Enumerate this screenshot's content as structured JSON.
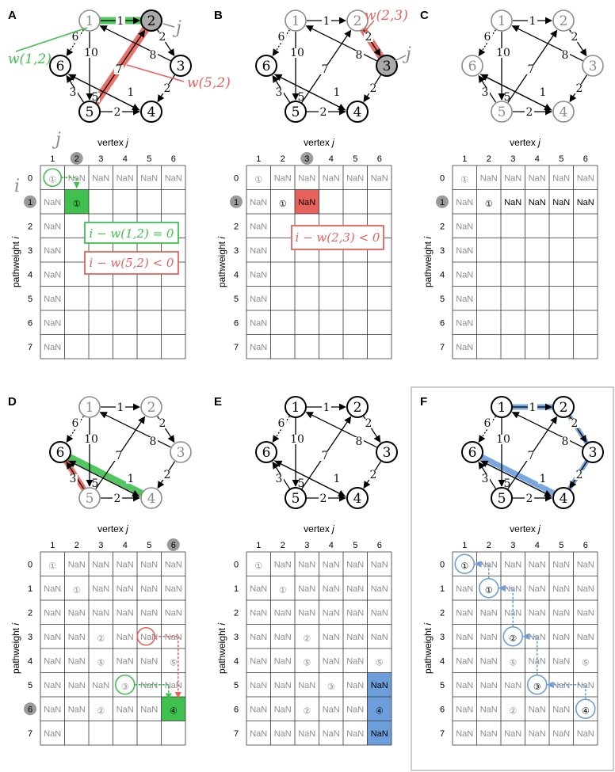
{
  "colors": {
    "green": "#3fc04f",
    "red": "#e8615a",
    "blue": "#6d9edc",
    "gray": "#8c8c8c",
    "dark": "#000000"
  },
  "axes": {
    "xlabel": "vertex",
    "xvar": "j",
    "ylabel": "pathweight",
    "yvar": "i",
    "cols": [
      "1",
      "2",
      "3",
      "4",
      "5",
      "6"
    ],
    "rows": [
      "0",
      "1",
      "2",
      "3",
      "4",
      "5",
      "6",
      "7"
    ]
  },
  "graph": {
    "nodes": [
      "1",
      "2",
      "3",
      "4",
      "5",
      "6"
    ],
    "edges": [
      {
        "from": 1,
        "to": 2,
        "w": "1"
      },
      {
        "from": 2,
        "to": 3,
        "w": "2"
      },
      {
        "from": 3,
        "to": 4,
        "w": "2"
      },
      {
        "from": 5,
        "to": 4,
        "w": "2"
      },
      {
        "from": 4,
        "to": 6,
        "w": "1"
      },
      {
        "from": 6,
        "to": 4,
        "w": "5"
      },
      {
        "from": 5,
        "to": 6,
        "w": "3"
      },
      {
        "from": 1,
        "to": 6,
        "w": "6"
      },
      {
        "from": 1,
        "to": 5,
        "w": "10"
      },
      {
        "from": 3,
        "to": 1,
        "w": "8"
      },
      {
        "from": 5,
        "to": 2,
        "w": "7"
      }
    ]
  },
  "panels": [
    {
      "label": "A",
      "graph_dark": [
        "2",
        "3",
        "4",
        "5",
        "6"
      ],
      "table": [
        [
          "①",
          "NaN",
          "NaN",
          "NaN",
          "NaN",
          "NaN"
        ],
        [
          "NaN",
          "①",
          "",
          "",
          "",
          ""
        ],
        [
          "NaN",
          "",
          "",
          "",
          "",
          ""
        ],
        [
          "NaN",
          "",
          "",
          "",
          "",
          ""
        ],
        [
          "NaN",
          "",
          "",
          "",
          "",
          ""
        ],
        [
          "NaN",
          "",
          "",
          "",
          "",
          ""
        ],
        [
          "NaN",
          "",
          "",
          "",
          "",
          ""
        ],
        [
          "NaN",
          "",
          "",
          "",
          "",
          ""
        ]
      ],
      "mark_col": "j",
      "mark_row": "i",
      "anno_green": "w(1,2)",
      "anno_red": "w(5,2)",
      "anno_j": "j",
      "box_green": "i − w(1,2) = 0",
      "box_red": "i − w(5,2) < 0"
    },
    {
      "label": "B",
      "graph_dark": [
        "3",
        "4",
        "5",
        "6"
      ],
      "table": [
        [
          "①",
          "NaN",
          "NaN",
          "NaN",
          "NaN",
          "NaN"
        ],
        [
          "NaN",
          "①",
          "NaN",
          "",
          "",
          ""
        ],
        [
          "NaN",
          "",
          "",
          "",
          "",
          ""
        ],
        [
          "NaN",
          "",
          "",
          "",
          "",
          ""
        ],
        [
          "NaN",
          "",
          "",
          "",
          "",
          ""
        ],
        [
          "NaN",
          "",
          "",
          "",
          "",
          ""
        ],
        [
          "NaN",
          "",
          "",
          "",
          "",
          ""
        ],
        [
          "NaN",
          "",
          "",
          "",
          "",
          ""
        ]
      ],
      "mark_col": "3",
      "mark_row": "1",
      "anno_red": "w(2,3)",
      "anno_j": "j",
      "box_red": "i − w(2,3) < 0"
    },
    {
      "label": "C",
      "graph_dark": [],
      "table": [
        [
          "①",
          "NaN",
          "NaN",
          "NaN",
          "NaN",
          "NaN"
        ],
        [
          "NaN",
          "①",
          "NaN",
          "NaN",
          "NaN",
          "NaN"
        ],
        [
          "NaN",
          "",
          "",
          "",
          "",
          ""
        ],
        [
          "NaN",
          "",
          "",
          "",
          "",
          ""
        ],
        [
          "NaN",
          "",
          "",
          "",
          "",
          ""
        ],
        [
          "NaN",
          "",
          "",
          "",
          "",
          ""
        ],
        [
          "NaN",
          "",
          "",
          "",
          "",
          ""
        ],
        [
          "NaN",
          "",
          "",
          "",
          "",
          ""
        ]
      ],
      "mark_row": "1"
    },
    {
      "label": "D",
      "graph_dark": [
        "6"
      ],
      "table": [
        [
          "①",
          "NaN",
          "NaN",
          "NaN",
          "NaN",
          "NaN"
        ],
        [
          "NaN",
          "①",
          "NaN",
          "NaN",
          "NaN",
          "NaN"
        ],
        [
          "NaN",
          "NaN",
          "NaN",
          "NaN",
          "NaN",
          "NaN"
        ],
        [
          "NaN",
          "NaN",
          "②",
          "NaN",
          "NaN",
          "NaN"
        ],
        [
          "NaN",
          "NaN",
          "⑤",
          "NaN",
          "NaN",
          "⑤"
        ],
        [
          "NaN",
          "NaN",
          "NaN",
          "③",
          "NaN",
          "NaN"
        ],
        [
          "NaN",
          "NaN",
          "②",
          "NaN",
          "NaN",
          "④"
        ],
        [
          "NaN",
          "",
          "",
          "",
          "",
          ""
        ]
      ],
      "mark_col": "6",
      "mark_row": "6"
    },
    {
      "label": "E",
      "graph_dark": [
        "1",
        "2",
        "3",
        "4",
        "5",
        "6"
      ],
      "table": [
        [
          "①",
          "NaN",
          "NaN",
          "NaN",
          "NaN",
          "NaN"
        ],
        [
          "NaN",
          "①",
          "NaN",
          "NaN",
          "NaN",
          "NaN"
        ],
        [
          "NaN",
          "NaN",
          "NaN",
          "NaN",
          "NaN",
          "NaN"
        ],
        [
          "NaN",
          "NaN",
          "②",
          "NaN",
          "NaN",
          "NaN"
        ],
        [
          "NaN",
          "NaN",
          "⑤",
          "NaN",
          "NaN",
          "⑤"
        ],
        [
          "NaN",
          "NaN",
          "NaN",
          "③",
          "NaN",
          "NaN"
        ],
        [
          "NaN",
          "NaN",
          "②",
          "NaN",
          "NaN",
          "④"
        ],
        [
          "NaN",
          "NaN",
          "NaN",
          "NaN",
          "NaN",
          "NaN"
        ]
      ]
    },
    {
      "label": "F",
      "graph_dark": [
        "1",
        "2",
        "3",
        "4",
        "5",
        "6"
      ],
      "table": [
        [
          "①",
          "NaN",
          "NaN",
          "NaN",
          "NaN",
          "NaN"
        ],
        [
          "NaN",
          "①",
          "NaN",
          "NaN",
          "NaN",
          "NaN"
        ],
        [
          "NaN",
          "NaN",
          "NaN",
          "NaN",
          "NaN",
          "NaN"
        ],
        [
          "NaN",
          "NaN",
          "②",
          "NaN",
          "NaN",
          "NaN"
        ],
        [
          "NaN",
          "NaN",
          "⑤",
          "NaN",
          "NaN",
          "⑤"
        ],
        [
          "NaN",
          "NaN",
          "NaN",
          "③",
          "NaN",
          "NaN"
        ],
        [
          "NaN",
          "NaN",
          "②",
          "NaN",
          "NaN",
          "④"
        ],
        [
          "NaN",
          "NaN",
          "NaN",
          "NaN",
          "NaN",
          "NaN"
        ]
      ]
    }
  ]
}
